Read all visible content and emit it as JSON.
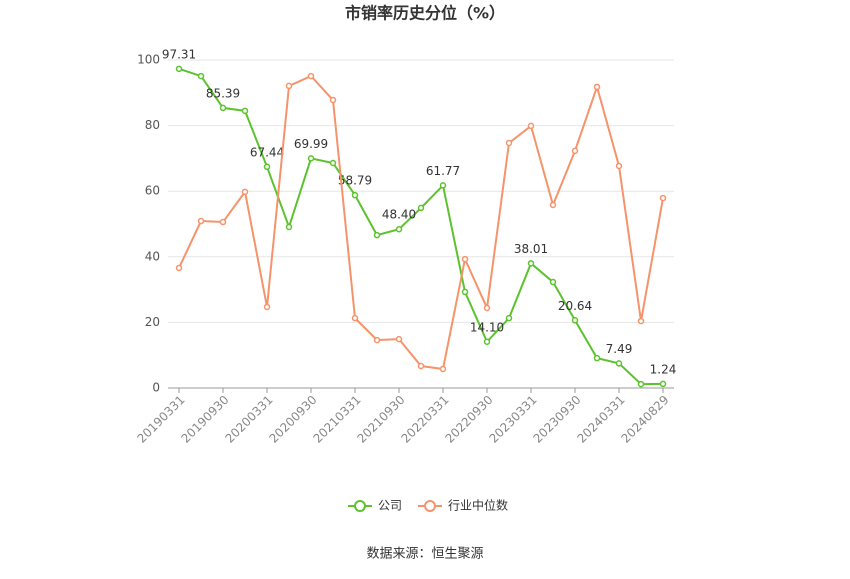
{
  "chart_data": {
    "type": "line",
    "title": "市销率历史分位（%）",
    "source": "数据来源：恒生聚源",
    "categories": [
      "20190331",
      null,
      "20190930",
      null,
      "20200331",
      null,
      "20200930",
      null,
      "20210331",
      null,
      "20210930",
      null,
      "20220331",
      null,
      "20220930",
      null,
      "20230331",
      null,
      "20230930",
      null,
      "20240331",
      null,
      "20240829"
    ],
    "series": [
      {
        "name": "公司",
        "color": "#5cc22e",
        "values": [
          97.31,
          95.1,
          85.39,
          84.5,
          67.44,
          49.1,
          69.99,
          68.6,
          58.79,
          46.6,
          48.4,
          54.9,
          61.77,
          29.3,
          14.1,
          21.3,
          38.01,
          32.3,
          20.64,
          9.1,
          7.49,
          1.2,
          1.24
        ],
        "value_labels": [
          "97.31",
          null,
          "85.39",
          null,
          "67.44",
          null,
          "69.99",
          null,
          "58.79",
          null,
          "48.40",
          null,
          "61.77",
          null,
          "14.10",
          null,
          "38.01",
          null,
          "20.64",
          null,
          "7.49",
          null,
          "1.24"
        ]
      },
      {
        "name": "行业中位数",
        "color": "#f5936b",
        "values": [
          36.6,
          50.9,
          50.6,
          59.8,
          24.7,
          92.1,
          95.1,
          87.8,
          21.3,
          14.6,
          14.9,
          6.7,
          5.8,
          39.3,
          24.4,
          74.7,
          79.9,
          55.8,
          72.3,
          91.8,
          67.7,
          20.4,
          57.9
        ]
      }
    ],
    "ylim": [
      0,
      100
    ],
    "yticks": [
      0,
      20,
      40,
      60,
      80,
      100
    ],
    "grid": true,
    "legend": "bottom"
  }
}
